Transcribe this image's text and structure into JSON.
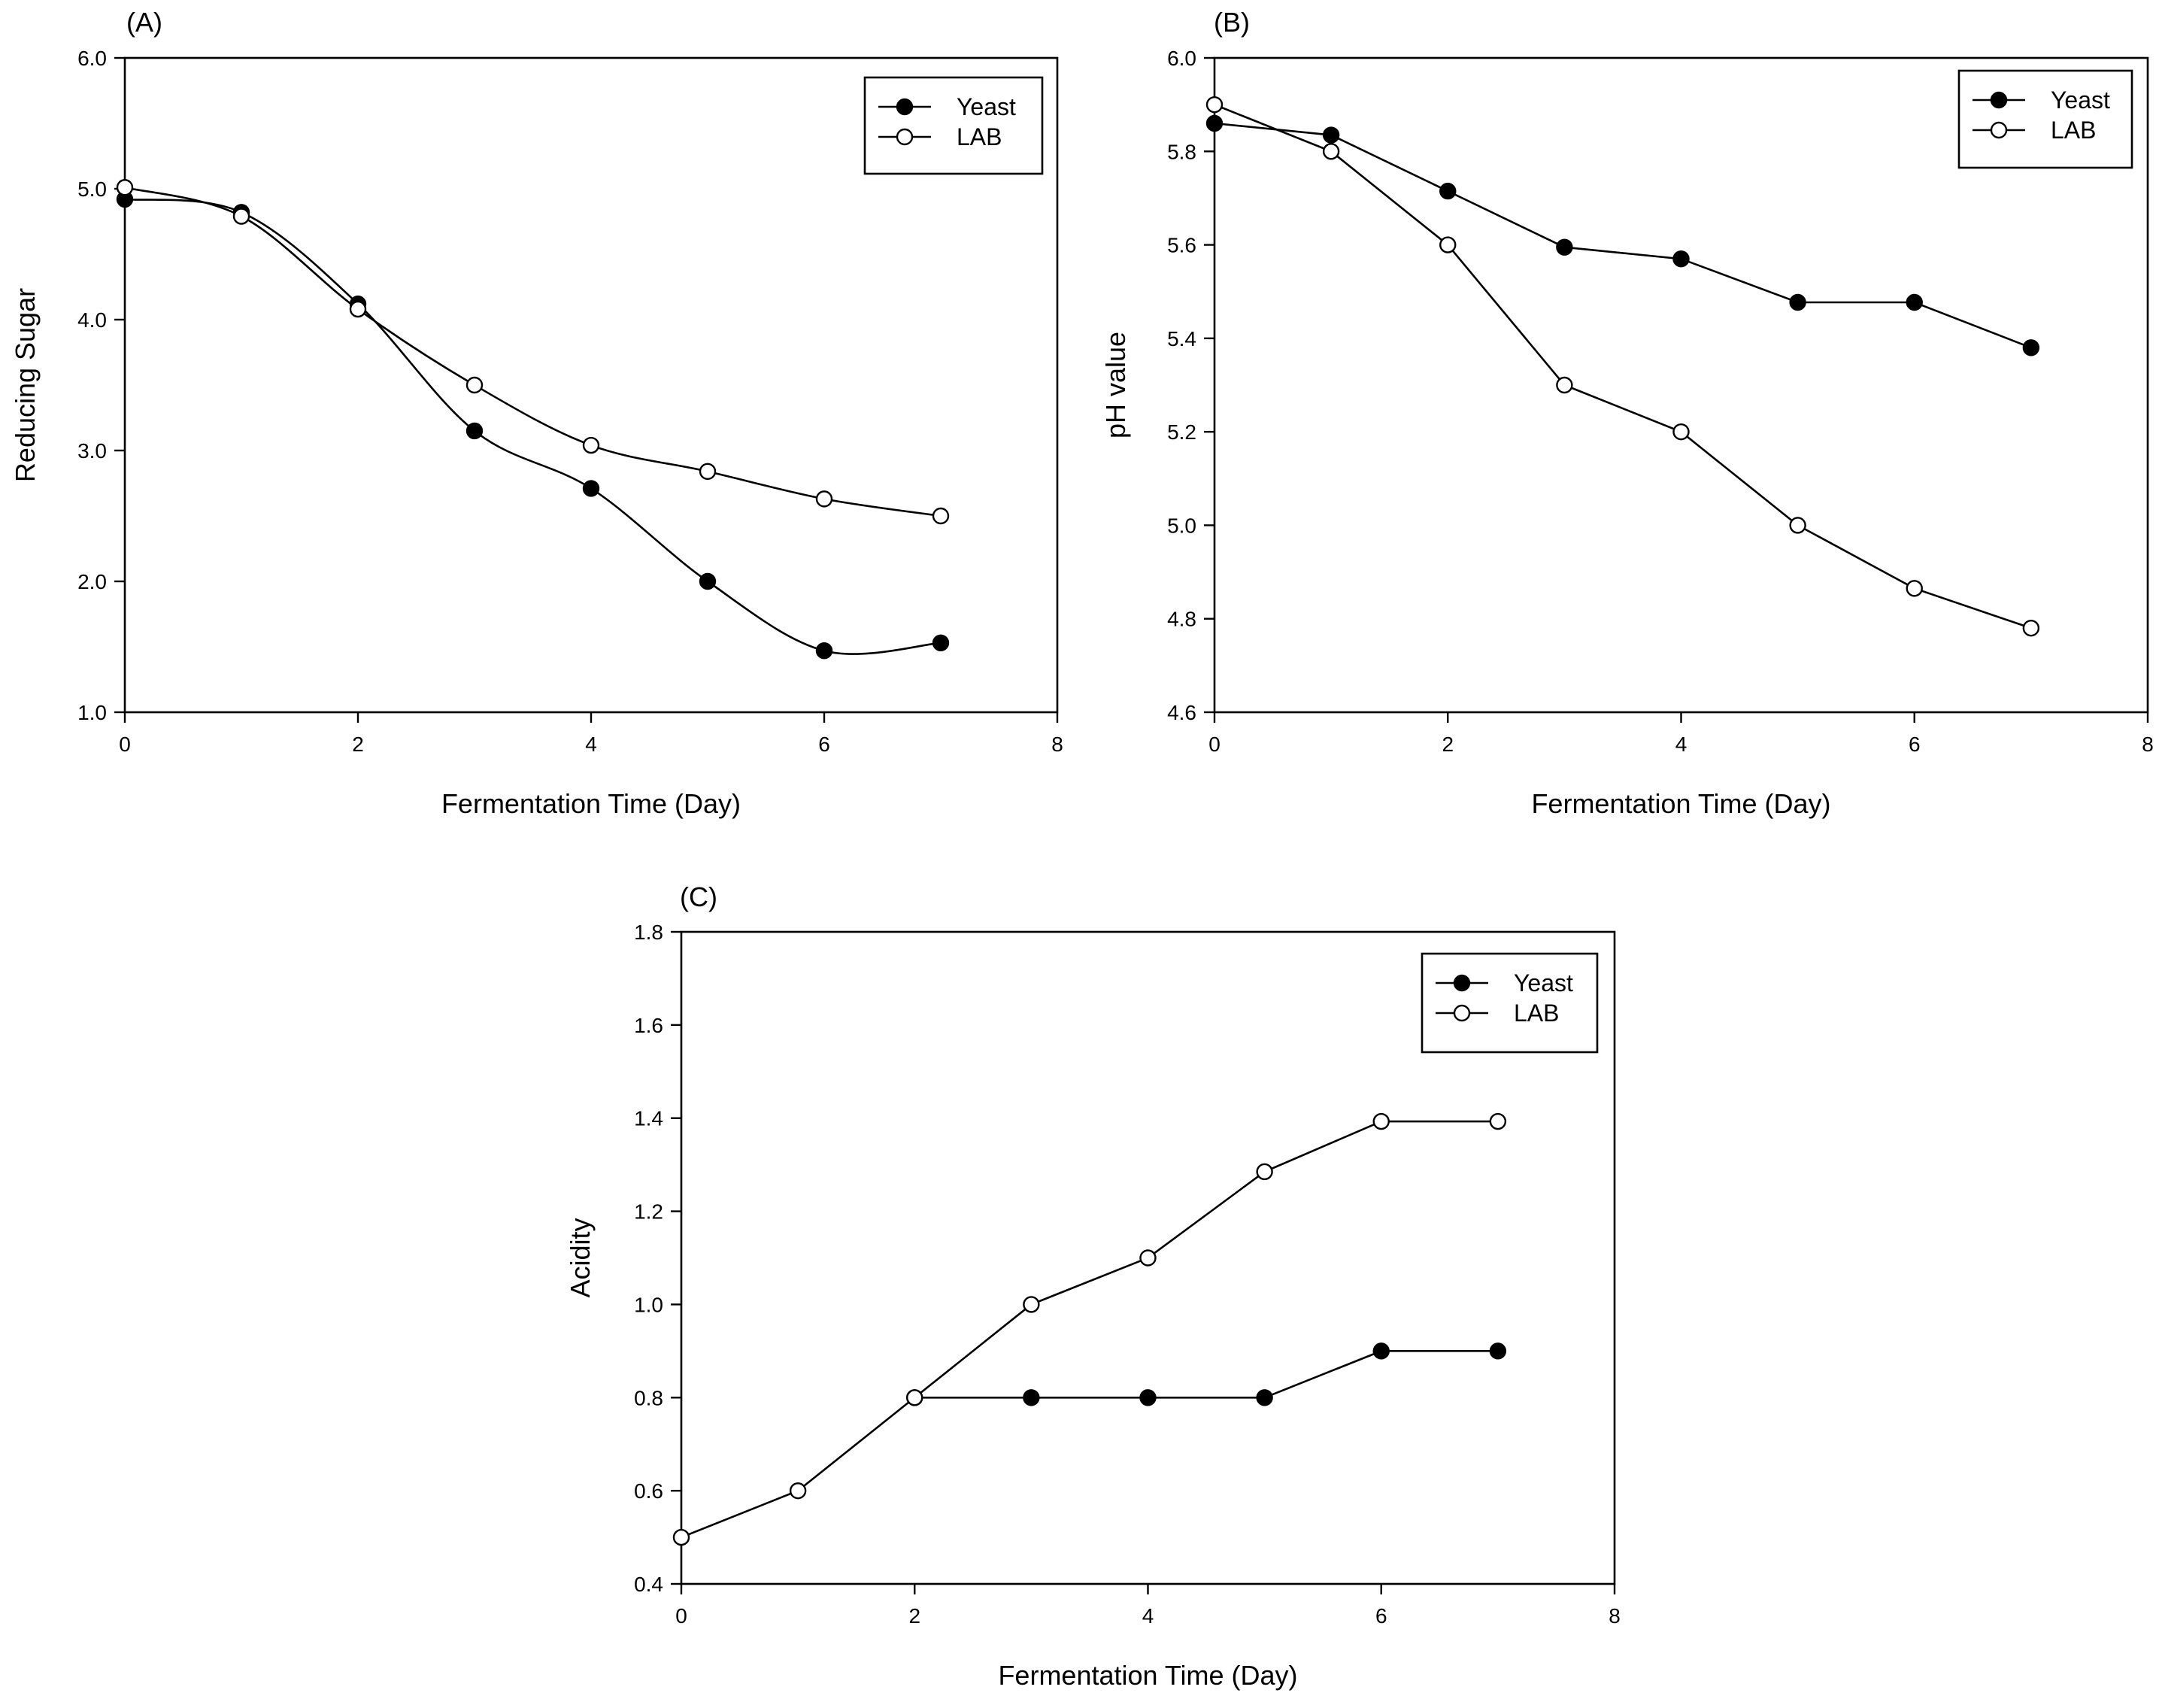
{
  "figure": {
    "background": "#ffffff",
    "marker_colors": {
      "Yeast": "#000000",
      "LAB": "#ffffff"
    }
  },
  "chart_data": [
    {
      "id": "A",
      "type": "line",
      "panel_label": "(A)",
      "xlabel": "Fermentation Time (Day)",
      "ylabel": "Reducing Sugar",
      "xlim": [
        0,
        8
      ],
      "ylim": [
        1.0,
        6.0
      ],
      "xticks": [
        "0",
        "2",
        "4",
        "6",
        "8"
      ],
      "yticks": [
        "1.0",
        "2.0",
        "3.0",
        "4.0",
        "5.0",
        "6.0"
      ],
      "legend_position": "top-right",
      "grid": false,
      "smooth": true,
      "series": [
        {
          "name": "Yeast",
          "marker": "filled-circle",
          "x": [
            0,
            1,
            2,
            3,
            4,
            5,
            6,
            7
          ],
          "y": [
            4.92,
            4.82,
            4.12,
            3.15,
            2.71,
            2.0,
            1.47,
            1.53
          ]
        },
        {
          "name": "LAB",
          "marker": "open-circle",
          "x": [
            0,
            1,
            2,
            3,
            4,
            5,
            6,
            7
          ],
          "y": [
            5.01,
            4.79,
            4.08,
            3.5,
            3.04,
            2.84,
            2.63,
            2.5
          ]
        }
      ]
    },
    {
      "id": "B",
      "type": "line",
      "panel_label": "(B)",
      "xlabel": "Fermentation Time (Day)",
      "ylabel": "pH value",
      "xlim": [
        0,
        8
      ],
      "ylim": [
        4.6,
        6.0
      ],
      "xticks": [
        "0",
        "2",
        "4",
        "6",
        "8"
      ],
      "yticks": [
        "4.6",
        "4.8",
        "5.0",
        "5.2",
        "5.4",
        "5.6",
        "5.8",
        "6.0"
      ],
      "legend_position": "top-right",
      "grid": false,
      "smooth": false,
      "series": [
        {
          "name": "Yeast",
          "marker": "filled-circle",
          "x": [
            0,
            1,
            2,
            3,
            4,
            5,
            6,
            7
          ],
          "y": [
            5.86,
            5.835,
            5.715,
            5.595,
            5.57,
            5.477,
            5.477,
            5.38
          ]
        },
        {
          "name": "LAB",
          "marker": "open-circle",
          "x": [
            0,
            1,
            2,
            3,
            4,
            5,
            6,
            7
          ],
          "y": [
            5.9,
            5.8,
            5.6,
            5.3,
            5.2,
            5.0,
            4.865,
            4.78
          ]
        }
      ]
    },
    {
      "id": "C",
      "type": "line",
      "panel_label": "(C)",
      "xlabel": "Fermentation Time (Day)",
      "ylabel": "Acidity",
      "xlim": [
        0,
        8
      ],
      "ylim": [
        0.4,
        1.8
      ],
      "xticks": [
        "0",
        "2",
        "4",
        "6",
        "8"
      ],
      "yticks": [
        "0.4",
        "0.6",
        "0.8",
        "1.0",
        "1.2",
        "1.4",
        "1.6",
        "1.8"
      ],
      "legend_position": "top-right",
      "grid": false,
      "smooth": false,
      "series": [
        {
          "name": "Yeast",
          "marker": "filled-circle",
          "x": [
            2,
            3,
            4,
            5,
            6,
            7
          ],
          "y": [
            0.8,
            0.8,
            0.8,
            0.8,
            0.9,
            0.9
          ]
        },
        {
          "name": "LAB",
          "marker": "open-circle",
          "x": [
            0,
            1,
            2,
            3,
            4,
            5,
            6,
            7
          ],
          "y": [
            0.5,
            0.6,
            0.8,
            1.0,
            1.1,
            1.285,
            1.393,
            1.393
          ]
        }
      ]
    }
  ]
}
